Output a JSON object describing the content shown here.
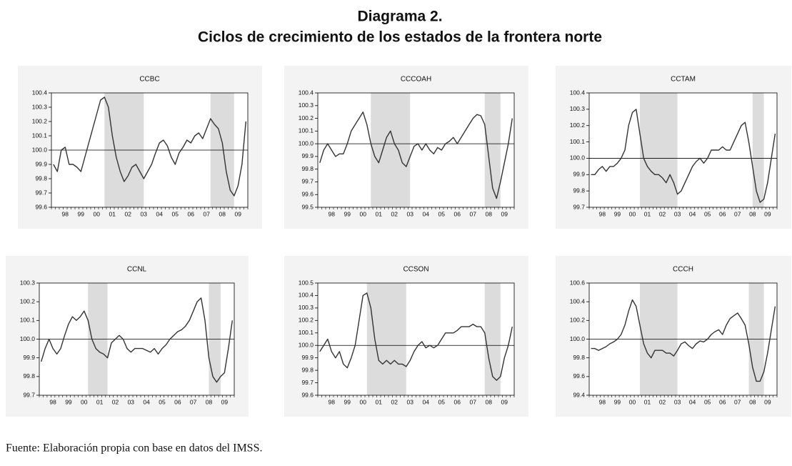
{
  "title": "Diagrama 2.",
  "subtitle": "Ciclos de crecimiento de los estados de la frontera norte",
  "source": "Fuente: Elaboración propia con base en datos del IMSS.",
  "chart_data": [
    {
      "type": "line",
      "title": "CCBC",
      "categories": [
        null,
        null,
        null,
        "98",
        null,
        null,
        null,
        "99",
        null,
        null,
        null,
        "00",
        null,
        null,
        null,
        "01",
        null,
        null,
        null,
        "02",
        null,
        null,
        null,
        "03",
        null,
        null,
        null,
        "04",
        null,
        null,
        null,
        "05",
        null,
        null,
        null,
        "06",
        null,
        null,
        null,
        "07",
        null,
        null,
        null,
        "08",
        null,
        null,
        null,
        "09",
        null,
        null
      ],
      "values": [
        99.9,
        99.85,
        100.0,
        100.02,
        99.9,
        99.9,
        99.88,
        99.85,
        99.95,
        100.05,
        100.15,
        100.25,
        100.35,
        100.37,
        100.3,
        100.1,
        99.95,
        99.85,
        99.78,
        99.82,
        99.88,
        99.9,
        99.85,
        99.8,
        99.85,
        99.9,
        99.98,
        100.05,
        100.07,
        100.03,
        99.95,
        99.9,
        99.98,
        100.02,
        100.07,
        100.05,
        100.1,
        100.12,
        100.08,
        100.15,
        100.22,
        100.18,
        100.15,
        100.05,
        99.85,
        99.72,
        99.68,
        99.75,
        99.9,
        100.2
      ],
      "ylim": [
        99.6,
        100.4
      ],
      "yticks": [
        99.6,
        99.7,
        99.8,
        99.9,
        {
          "value": 100,
          "label": "100.0"
        },
        100.1,
        100.2,
        100.3,
        100.4
      ],
      "reference_line": 100,
      "shaded": [
        [
          13,
          23
        ],
        [
          40,
          46
        ]
      ],
      "color": "#333333",
      "shade_color": "#dcdcdc"
    },
    {
      "type": "line",
      "title": "CCCOAH",
      "categories": [
        null,
        null,
        null,
        "98",
        null,
        null,
        null,
        "99",
        null,
        null,
        null,
        "00",
        null,
        null,
        null,
        "01",
        null,
        null,
        null,
        "02",
        null,
        null,
        null,
        "03",
        null,
        null,
        null,
        "04",
        null,
        null,
        null,
        "05",
        null,
        null,
        null,
        "06",
        null,
        null,
        null,
        "07",
        null,
        null,
        null,
        "08",
        null,
        null,
        null,
        "09",
        null,
        null
      ],
      "values": [
        99.85,
        99.95,
        100.0,
        99.95,
        99.9,
        99.92,
        99.92,
        100.0,
        100.1,
        100.15,
        100.2,
        100.25,
        100.15,
        100.0,
        99.9,
        99.85,
        99.95,
        100.05,
        100.1,
        100.0,
        99.95,
        99.85,
        99.82,
        99.9,
        99.98,
        100.0,
        99.95,
        100.0,
        99.95,
        99.92,
        99.97,
        99.95,
        100.0,
        100.02,
        100.05,
        100.0,
        100.05,
        100.1,
        100.15,
        100.2,
        100.23,
        100.22,
        100.15,
        99.9,
        99.65,
        99.57,
        99.7,
        99.85,
        100.0,
        100.2
      ],
      "ylim": [
        99.5,
        100.4
      ],
      "yticks": [
        99.5,
        99.6,
        99.7,
        99.8,
        99.9,
        {
          "value": 100,
          "label": "100.0"
        },
        100.1,
        100.2,
        100.3,
        100.4
      ],
      "reference_line": 100,
      "shaded": [
        [
          13,
          23
        ],
        [
          42,
          46
        ]
      ],
      "color": "#333333",
      "shade_color": "#dcdcdc"
    },
    {
      "type": "line",
      "title": "CCTAM",
      "categories": [
        null,
        null,
        null,
        "98",
        null,
        null,
        null,
        "99",
        null,
        null,
        null,
        "00",
        null,
        null,
        null,
        "01",
        null,
        null,
        null,
        "02",
        null,
        null,
        null,
        "03",
        null,
        null,
        null,
        "04",
        null,
        null,
        null,
        "05",
        null,
        null,
        null,
        "06",
        null,
        null,
        null,
        "07",
        null,
        null,
        null,
        "08",
        null,
        null,
        null,
        "09",
        null,
        null
      ],
      "values": [
        99.9,
        99.9,
        99.93,
        99.95,
        99.92,
        99.95,
        99.95,
        99.97,
        100.0,
        100.05,
        100.2,
        100.28,
        100.3,
        100.15,
        100.0,
        99.95,
        99.92,
        99.9,
        99.9,
        99.88,
        99.85,
        99.9,
        99.85,
        99.78,
        99.8,
        99.85,
        99.9,
        99.95,
        99.98,
        100.0,
        99.97,
        100.0,
        100.05,
        100.05,
        100.05,
        100.07,
        100.05,
        100.05,
        100.1,
        100.15,
        100.2,
        100.22,
        100.1,
        99.95,
        99.8,
        99.73,
        99.75,
        99.85,
        100.0,
        100.15
      ],
      "ylim": [
        99.7,
        100.4
      ],
      "yticks": [
        99.7,
        99.8,
        99.9,
        {
          "value": 100,
          "label": "100.0"
        },
        100.1,
        100.2,
        100.3,
        100.4
      ],
      "reference_line": 100,
      "shaded": [
        [
          13,
          23
        ],
        [
          43,
          46
        ]
      ],
      "color": "#333333",
      "shade_color": "#dcdcdc"
    },
    {
      "type": "line",
      "title": "CCNL",
      "categories": [
        null,
        null,
        null,
        "98",
        null,
        null,
        null,
        "99",
        null,
        null,
        null,
        "00",
        null,
        null,
        null,
        "01",
        null,
        null,
        null,
        "02",
        null,
        null,
        null,
        "03",
        null,
        null,
        null,
        "04",
        null,
        null,
        null,
        "05",
        null,
        null,
        null,
        "06",
        null,
        null,
        null,
        "07",
        null,
        null,
        null,
        "08",
        null,
        null,
        null,
        "09",
        null,
        null
      ],
      "values": [
        99.88,
        99.95,
        100.0,
        99.95,
        99.92,
        99.95,
        100.02,
        100.08,
        100.12,
        100.1,
        100.12,
        100.15,
        100.1,
        100.0,
        99.95,
        99.93,
        99.92,
        99.9,
        99.98,
        100.0,
        100.02,
        100.0,
        99.95,
        99.93,
        99.95,
        99.95,
        99.95,
        99.94,
        99.93,
        99.95,
        99.92,
        99.95,
        99.97,
        100.0,
        100.02,
        100.04,
        100.05,
        100.07,
        100.1,
        100.15,
        100.2,
        100.22,
        100.1,
        99.9,
        99.8,
        99.77,
        99.8,
        99.82,
        99.95,
        100.1
      ],
      "ylim": [
        99.7,
        100.3
      ],
      "yticks": [
        99.7,
        99.8,
        99.9,
        {
          "value": 100,
          "label": "100.0"
        },
        100.1,
        100.2,
        100.3
      ],
      "reference_line": 100,
      "shaded": [
        [
          12,
          17
        ],
        [
          43,
          46
        ]
      ],
      "color": "#333333",
      "shade_color": "#dcdcdc"
    },
    {
      "type": "line",
      "title": "CCSON",
      "categories": [
        null,
        null,
        null,
        "98",
        null,
        null,
        null,
        "99",
        null,
        null,
        null,
        "00",
        null,
        null,
        null,
        "01",
        null,
        null,
        null,
        "02",
        null,
        null,
        null,
        "03",
        null,
        null,
        null,
        "04",
        null,
        null,
        null,
        "05",
        null,
        null,
        null,
        "06",
        null,
        null,
        null,
        "07",
        null,
        null,
        null,
        "08",
        null,
        null,
        null,
        "09",
        null,
        null
      ],
      "values": [
        99.95,
        100.0,
        100.05,
        99.95,
        99.9,
        99.95,
        99.85,
        99.82,
        99.9,
        100.0,
        100.2,
        100.4,
        100.42,
        100.3,
        100.05,
        99.88,
        99.85,
        99.88,
        99.85,
        99.88,
        99.85,
        99.85,
        99.83,
        99.88,
        99.95,
        100.0,
        100.03,
        99.98,
        100.0,
        99.98,
        100.0,
        100.05,
        100.1,
        100.1,
        100.1,
        100.12,
        100.15,
        100.15,
        100.15,
        100.17,
        100.15,
        100.15,
        100.1,
        99.9,
        99.75,
        99.72,
        99.75,
        99.9,
        100.0,
        100.15
      ],
      "ylim": [
        99.6,
        100.5
      ],
      "yticks": [
        99.6,
        99.7,
        99.8,
        99.9,
        {
          "value": 100,
          "label": "100.0"
        },
        100.1,
        100.2,
        100.3,
        100.4,
        100.5
      ],
      "reference_line": 100,
      "shaded": [
        [
          12,
          22
        ],
        [
          42,
          46
        ]
      ],
      "color": "#333333",
      "shade_color": "#dcdcdc"
    },
    {
      "type": "line",
      "title": "CCCH",
      "categories": [
        null,
        null,
        null,
        "98",
        null,
        null,
        null,
        "99",
        null,
        null,
        null,
        "00",
        null,
        null,
        null,
        "01",
        null,
        null,
        null,
        "02",
        null,
        null,
        null,
        "03",
        null,
        null,
        null,
        "04",
        null,
        null,
        null,
        "05",
        null,
        null,
        null,
        "06",
        null,
        null,
        null,
        "07",
        null,
        null,
        null,
        "08",
        null,
        null,
        null,
        "09",
        null,
        null
      ],
      "values": [
        99.9,
        99.9,
        99.88,
        99.9,
        99.92,
        99.95,
        99.97,
        100.0,
        100.05,
        100.15,
        100.3,
        100.42,
        100.35,
        100.15,
        99.95,
        99.85,
        99.8,
        99.88,
        99.88,
        99.88,
        99.85,
        99.85,
        99.82,
        99.88,
        99.95,
        99.97,
        99.93,
        99.9,
        99.95,
        99.98,
        99.97,
        100.0,
        100.05,
        100.08,
        100.1,
        100.05,
        100.15,
        100.22,
        100.25,
        100.28,
        100.22,
        100.15,
        99.95,
        99.7,
        99.55,
        99.55,
        99.65,
        99.85,
        100.1,
        100.35
      ],
      "ylim": [
        99.4,
        100.6
      ],
      "yticks": [
        99.4,
        99.6,
        99.8,
        {
          "value": 100,
          "label": "100.0"
        },
        100.2,
        100.4,
        100.6
      ],
      "reference_line": 100,
      "shaded": [
        [
          13,
          23
        ],
        [
          42,
          46
        ]
      ],
      "color": "#333333",
      "shade_color": "#dcdcdc"
    }
  ]
}
